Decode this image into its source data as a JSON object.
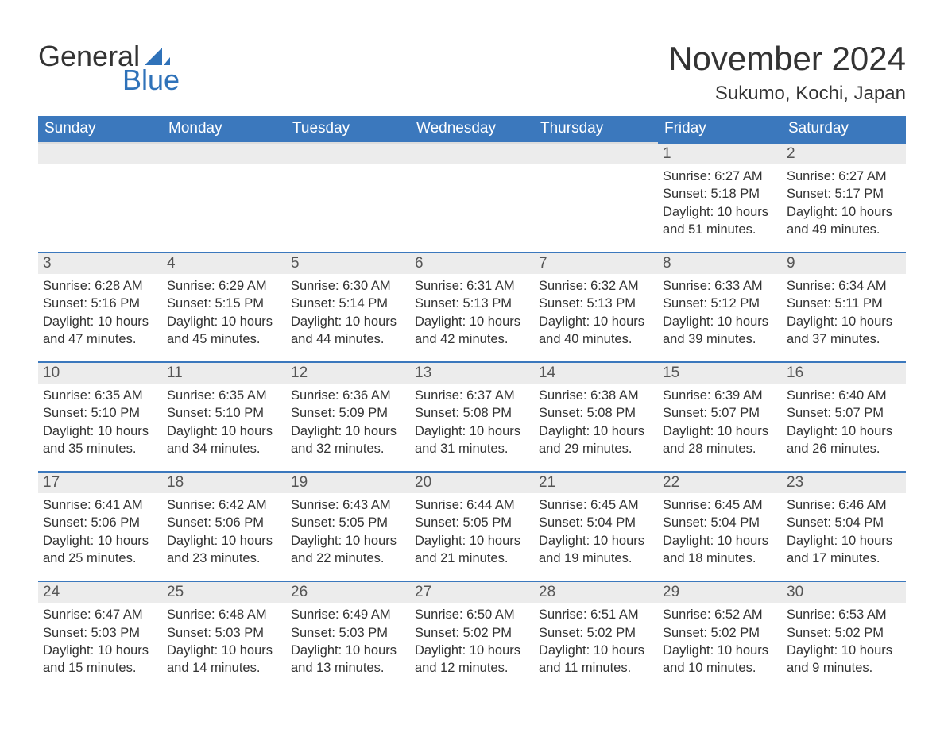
{
  "brand": {
    "word1": "General",
    "word2": "Blue",
    "accent_color": "#2f72b9",
    "text_color": "#333333"
  },
  "header": {
    "title": "November 2024",
    "location": "Sukumo, Kochi, Japan"
  },
  "calendar": {
    "header_bg": "#3b78bd",
    "header_text": "#ffffff",
    "daynum_bg": "#ececec",
    "daynum_border": "#3b78bd",
    "text_color": "#333333",
    "days_of_week": [
      "Sunday",
      "Monday",
      "Tuesday",
      "Wednesday",
      "Thursday",
      "Friday",
      "Saturday"
    ],
    "weeks": [
      [
        null,
        null,
        null,
        null,
        null,
        {
          "n": "1",
          "sunrise": "Sunrise: 6:27 AM",
          "sunset": "Sunset: 5:18 PM",
          "daylight": "Daylight: 10 hours and 51 minutes."
        },
        {
          "n": "2",
          "sunrise": "Sunrise: 6:27 AM",
          "sunset": "Sunset: 5:17 PM",
          "daylight": "Daylight: 10 hours and 49 minutes."
        }
      ],
      [
        {
          "n": "3",
          "sunrise": "Sunrise: 6:28 AM",
          "sunset": "Sunset: 5:16 PM",
          "daylight": "Daylight: 10 hours and 47 minutes."
        },
        {
          "n": "4",
          "sunrise": "Sunrise: 6:29 AM",
          "sunset": "Sunset: 5:15 PM",
          "daylight": "Daylight: 10 hours and 45 minutes."
        },
        {
          "n": "5",
          "sunrise": "Sunrise: 6:30 AM",
          "sunset": "Sunset: 5:14 PM",
          "daylight": "Daylight: 10 hours and 44 minutes."
        },
        {
          "n": "6",
          "sunrise": "Sunrise: 6:31 AM",
          "sunset": "Sunset: 5:13 PM",
          "daylight": "Daylight: 10 hours and 42 minutes."
        },
        {
          "n": "7",
          "sunrise": "Sunrise: 6:32 AM",
          "sunset": "Sunset: 5:13 PM",
          "daylight": "Daylight: 10 hours and 40 minutes."
        },
        {
          "n": "8",
          "sunrise": "Sunrise: 6:33 AM",
          "sunset": "Sunset: 5:12 PM",
          "daylight": "Daylight: 10 hours and 39 minutes."
        },
        {
          "n": "9",
          "sunrise": "Sunrise: 6:34 AM",
          "sunset": "Sunset: 5:11 PM",
          "daylight": "Daylight: 10 hours and 37 minutes."
        }
      ],
      [
        {
          "n": "10",
          "sunrise": "Sunrise: 6:35 AM",
          "sunset": "Sunset: 5:10 PM",
          "daylight": "Daylight: 10 hours and 35 minutes."
        },
        {
          "n": "11",
          "sunrise": "Sunrise: 6:35 AM",
          "sunset": "Sunset: 5:10 PM",
          "daylight": "Daylight: 10 hours and 34 minutes."
        },
        {
          "n": "12",
          "sunrise": "Sunrise: 6:36 AM",
          "sunset": "Sunset: 5:09 PM",
          "daylight": "Daylight: 10 hours and 32 minutes."
        },
        {
          "n": "13",
          "sunrise": "Sunrise: 6:37 AM",
          "sunset": "Sunset: 5:08 PM",
          "daylight": "Daylight: 10 hours and 31 minutes."
        },
        {
          "n": "14",
          "sunrise": "Sunrise: 6:38 AM",
          "sunset": "Sunset: 5:08 PM",
          "daylight": "Daylight: 10 hours and 29 minutes."
        },
        {
          "n": "15",
          "sunrise": "Sunrise: 6:39 AM",
          "sunset": "Sunset: 5:07 PM",
          "daylight": "Daylight: 10 hours and 28 minutes."
        },
        {
          "n": "16",
          "sunrise": "Sunrise: 6:40 AM",
          "sunset": "Sunset: 5:07 PM",
          "daylight": "Daylight: 10 hours and 26 minutes."
        }
      ],
      [
        {
          "n": "17",
          "sunrise": "Sunrise: 6:41 AM",
          "sunset": "Sunset: 5:06 PM",
          "daylight": "Daylight: 10 hours and 25 minutes."
        },
        {
          "n": "18",
          "sunrise": "Sunrise: 6:42 AM",
          "sunset": "Sunset: 5:06 PM",
          "daylight": "Daylight: 10 hours and 23 minutes."
        },
        {
          "n": "19",
          "sunrise": "Sunrise: 6:43 AM",
          "sunset": "Sunset: 5:05 PM",
          "daylight": "Daylight: 10 hours and 22 minutes."
        },
        {
          "n": "20",
          "sunrise": "Sunrise: 6:44 AM",
          "sunset": "Sunset: 5:05 PM",
          "daylight": "Daylight: 10 hours and 21 minutes."
        },
        {
          "n": "21",
          "sunrise": "Sunrise: 6:45 AM",
          "sunset": "Sunset: 5:04 PM",
          "daylight": "Daylight: 10 hours and 19 minutes."
        },
        {
          "n": "22",
          "sunrise": "Sunrise: 6:45 AM",
          "sunset": "Sunset: 5:04 PM",
          "daylight": "Daylight: 10 hours and 18 minutes."
        },
        {
          "n": "23",
          "sunrise": "Sunrise: 6:46 AM",
          "sunset": "Sunset: 5:04 PM",
          "daylight": "Daylight: 10 hours and 17 minutes."
        }
      ],
      [
        {
          "n": "24",
          "sunrise": "Sunrise: 6:47 AM",
          "sunset": "Sunset: 5:03 PM",
          "daylight": "Daylight: 10 hours and 15 minutes."
        },
        {
          "n": "25",
          "sunrise": "Sunrise: 6:48 AM",
          "sunset": "Sunset: 5:03 PM",
          "daylight": "Daylight: 10 hours and 14 minutes."
        },
        {
          "n": "26",
          "sunrise": "Sunrise: 6:49 AM",
          "sunset": "Sunset: 5:03 PM",
          "daylight": "Daylight: 10 hours and 13 minutes."
        },
        {
          "n": "27",
          "sunrise": "Sunrise: 6:50 AM",
          "sunset": "Sunset: 5:02 PM",
          "daylight": "Daylight: 10 hours and 12 minutes."
        },
        {
          "n": "28",
          "sunrise": "Sunrise: 6:51 AM",
          "sunset": "Sunset: 5:02 PM",
          "daylight": "Daylight: 10 hours and 11 minutes."
        },
        {
          "n": "29",
          "sunrise": "Sunrise: 6:52 AM",
          "sunset": "Sunset: 5:02 PM",
          "daylight": "Daylight: 10 hours and 10 minutes."
        },
        {
          "n": "30",
          "sunrise": "Sunrise: 6:53 AM",
          "sunset": "Sunset: 5:02 PM",
          "daylight": "Daylight: 10 hours and 9 minutes."
        }
      ]
    ]
  }
}
